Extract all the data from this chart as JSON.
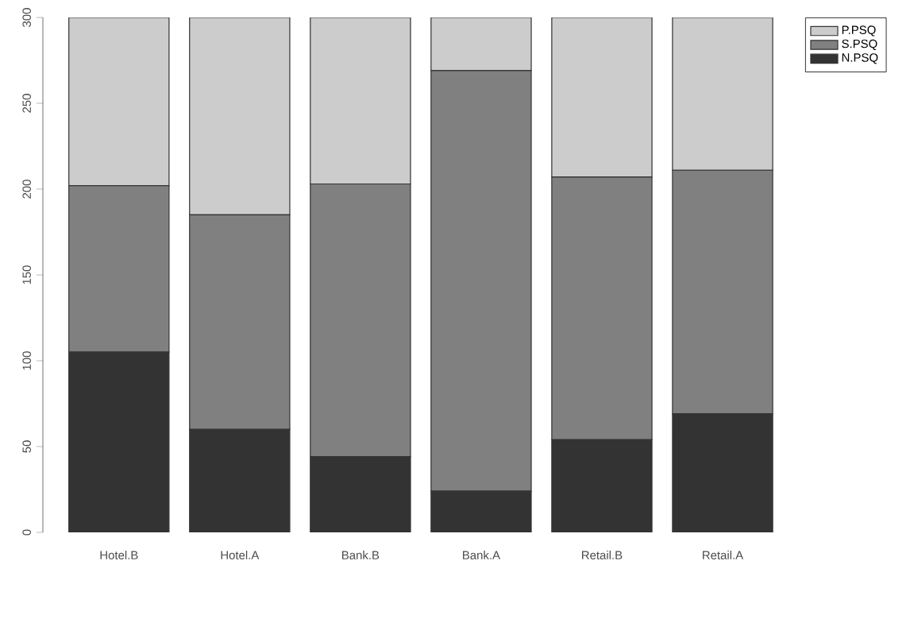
{
  "chart_data": {
    "type": "bar",
    "stacked": true,
    "categories": [
      "Hotel.B",
      "Hotel.A",
      "Bank.B",
      "Bank.A",
      "Retail.B",
      "Retail.A"
    ],
    "series": [
      {
        "name": "N.PSQ",
        "color": "#333333",
        "values": [
          105,
          60,
          44,
          24,
          54,
          69
        ]
      },
      {
        "name": "S.PSQ",
        "color": "#808080",
        "values": [
          97,
          125,
          159,
          245,
          153,
          142
        ]
      },
      {
        "name": "P.PSQ",
        "color": "#cccccc",
        "values": [
          98,
          115,
          97,
          31,
          93,
          89
        ]
      }
    ],
    "ylim": [
      0,
      300
    ],
    "yticks": [
      0,
      50,
      100,
      150,
      200,
      250,
      300
    ],
    "grid": false,
    "legend": "top right"
  }
}
